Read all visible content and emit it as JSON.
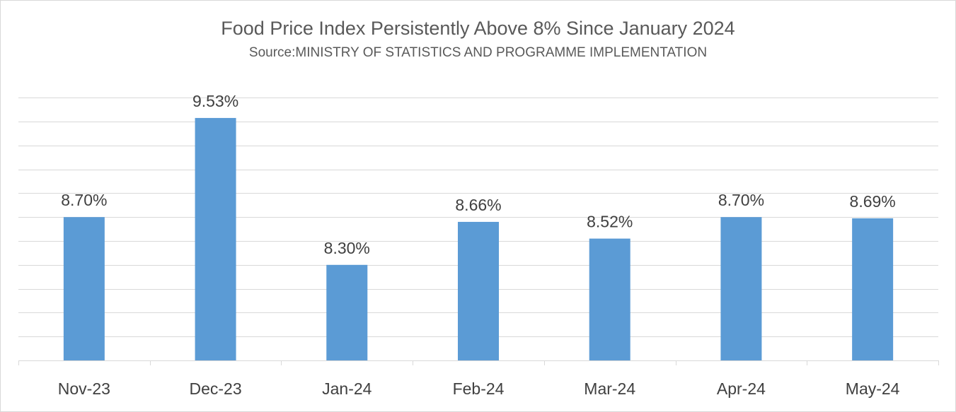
{
  "chart_data": {
    "type": "bar",
    "title": "Food Price Index Persistently Above 8% Since January 2024",
    "subtitle": "Source:MINISTRY OF STATISTICS  AND PROGRAMME IMPLEMENTATION",
    "categories": [
      "Nov-23",
      "Dec-23",
      "Jan-24",
      "Feb-24",
      "Mar-24",
      "Apr-24",
      "May-24"
    ],
    "values": [
      8.7,
      9.53,
      8.3,
      8.66,
      8.52,
      8.7,
      8.69
    ],
    "data_labels": [
      "8.70%",
      "9.53%",
      "8.30%",
      "8.66%",
      "8.52%",
      "8.70%",
      "8.69%"
    ],
    "ylim": [
      7.5,
      9.7
    ],
    "gridline_step": 0.2,
    "grid": true,
    "legend": "none",
    "bar_color": "#5b9bd5",
    "grid_color": "#d9d9d9",
    "text_color": "#595959"
  }
}
